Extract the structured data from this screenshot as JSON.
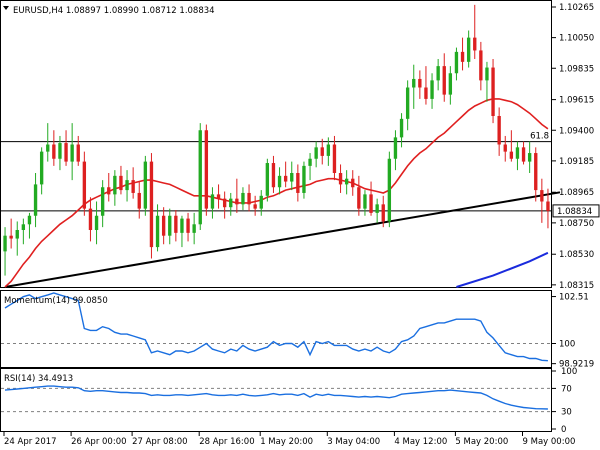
{
  "colors": {
    "bull": "#22aa22",
    "bear": "#dd2020",
    "sma": "#e02020",
    "long_ma": "#1a2bdd",
    "trendline": "#000000",
    "indicator_line": "#1a6fe0",
    "axis": "#000000",
    "dashed": "#808080",
    "price_tag_bg": "#ffffff"
  },
  "header": {
    "arrow_icon": "triangle-down-icon",
    "text": "EURUSD,H4  1.08897  1.08990  1.08712  1.08834"
  },
  "chart_data": [
    {
      "type": "candlestick",
      "symbol": "EURUSD",
      "timeframe": "H4",
      "ohlc_last": {
        "open": 1.08897,
        "high": 1.0899,
        "low": 1.08712,
        "close": 1.08834
      },
      "ylim": [
        1.083,
        1.103
      ],
      "y_ticks": [
        "1.10265",
        "1.10050",
        "1.09835",
        "1.09615",
        "1.09400",
        "1.09185",
        "1.08965",
        "1.08750",
        "1.08530",
        "1.08315"
      ],
      "x_tick_labels": [
        "24 Apr 2017",
        "26 Apr 00:00",
        "27 Apr 08:00",
        "28 Apr 16:00",
        "1 May 20:00",
        "3 May 04:00",
        "4 May 12:00",
        "5 May 20:00",
        "9 May 00:00"
      ],
      "current_price_label": "1.08834",
      "current_price": 1.08834,
      "horizontal_levels": [
        {
          "value": 1.0932,
          "label": "61.8"
        },
        {
          "value": 1.08834,
          "label": ""
        }
      ],
      "candles": [
        {
          "o": 1.0855,
          "h": 1.0872,
          "l": 1.0838,
          "c": 1.0866
        },
        {
          "o": 1.0866,
          "h": 1.0878,
          "l": 1.0857,
          "c": 1.0864
        },
        {
          "o": 1.0864,
          "h": 1.0876,
          "l": 1.0852,
          "c": 1.087
        },
        {
          "o": 1.087,
          "h": 1.0878,
          "l": 1.086,
          "c": 1.0874
        },
        {
          "o": 1.0874,
          "h": 1.0882,
          "l": 1.0864,
          "c": 1.088
        },
        {
          "o": 1.088,
          "h": 1.091,
          "l": 1.0872,
          "c": 1.0902
        },
        {
          "o": 1.0902,
          "h": 1.0928,
          "l": 1.0895,
          "c": 1.0925
        },
        {
          "o": 1.0925,
          "h": 1.0945,
          "l": 1.0918,
          "c": 1.093
        },
        {
          "o": 1.093,
          "h": 1.094,
          "l": 1.0915,
          "c": 1.092
        },
        {
          "o": 1.092,
          "h": 1.0936,
          "l": 1.0912,
          "c": 1.0931
        },
        {
          "o": 1.0931,
          "h": 1.094,
          "l": 1.0915,
          "c": 1.0918
        },
        {
          "o": 1.0918,
          "h": 1.0945,
          "l": 1.0905,
          "c": 1.093
        },
        {
          "o": 1.093,
          "h": 1.0936,
          "l": 1.0915,
          "c": 1.0918
        },
        {
          "o": 1.0918,
          "h": 1.0925,
          "l": 1.088,
          "c": 1.0885
        },
        {
          "o": 1.0885,
          "h": 1.0893,
          "l": 1.0862,
          "c": 1.087
        },
        {
          "o": 1.087,
          "h": 1.089,
          "l": 1.086,
          "c": 1.088
        },
        {
          "o": 1.088,
          "h": 1.0905,
          "l": 1.0872,
          "c": 1.09
        },
        {
          "o": 1.09,
          "h": 1.091,
          "l": 1.089,
          "c": 1.0895
        },
        {
          "o": 1.0895,
          "h": 1.0912,
          "l": 1.0887,
          "c": 1.0908
        },
        {
          "o": 1.0908,
          "h": 1.0915,
          "l": 1.0895,
          "c": 1.0898
        },
        {
          "o": 1.0898,
          "h": 1.0912,
          "l": 1.089,
          "c": 1.0905
        },
        {
          "o": 1.0905,
          "h": 1.0914,
          "l": 1.0892,
          "c": 1.0896
        },
        {
          "o": 1.0896,
          "h": 1.0904,
          "l": 1.0878,
          "c": 1.0885
        },
        {
          "o": 1.0885,
          "h": 1.0922,
          "l": 1.088,
          "c": 1.0918
        },
        {
          "o": 1.0918,
          "h": 1.0924,
          "l": 1.085,
          "c": 1.0858
        },
        {
          "o": 1.0858,
          "h": 1.0888,
          "l": 1.0855,
          "c": 1.088
        },
        {
          "o": 1.088,
          "h": 1.0886,
          "l": 1.086,
          "c": 1.0866
        },
        {
          "o": 1.0866,
          "h": 1.0885,
          "l": 1.086,
          "c": 1.088
        },
        {
          "o": 1.088,
          "h": 1.0884,
          "l": 1.0862,
          "c": 1.0868
        },
        {
          "o": 1.0868,
          "h": 1.088,
          "l": 1.0858,
          "c": 1.0878
        },
        {
          "o": 1.0878,
          "h": 1.0882,
          "l": 1.0862,
          "c": 1.0868
        },
        {
          "o": 1.0868,
          "h": 1.0882,
          "l": 1.086,
          "c": 1.0874
        },
        {
          "o": 1.0874,
          "h": 1.0945,
          "l": 1.087,
          "c": 1.094
        },
        {
          "o": 1.094,
          "h": 1.0944,
          "l": 1.088,
          "c": 1.0885
        },
        {
          "o": 1.0885,
          "h": 1.09,
          "l": 1.0878,
          "c": 1.0895
        },
        {
          "o": 1.0895,
          "h": 1.0902,
          "l": 1.0885,
          "c": 1.0892
        },
        {
          "o": 1.0892,
          "h": 1.0897,
          "l": 1.0878,
          "c": 1.0886
        },
        {
          "o": 1.0886,
          "h": 1.0896,
          "l": 1.088,
          "c": 1.0892
        },
        {
          "o": 1.0892,
          "h": 1.0906,
          "l": 1.0882,
          "c": 1.0888
        },
        {
          "o": 1.0888,
          "h": 1.09,
          "l": 1.0884,
          "c": 1.0896
        },
        {
          "o": 1.0896,
          "h": 1.0902,
          "l": 1.0883,
          "c": 1.0888
        },
        {
          "o": 1.0888,
          "h": 1.0894,
          "l": 1.088,
          "c": 1.0885
        },
        {
          "o": 1.0885,
          "h": 1.0898,
          "l": 1.088,
          "c": 1.0894
        },
        {
          "o": 1.0894,
          "h": 1.092,
          "l": 1.089,
          "c": 1.0917
        },
        {
          "o": 1.0917,
          "h": 1.0922,
          "l": 1.0896,
          "c": 1.09
        },
        {
          "o": 1.09,
          "h": 1.0914,
          "l": 1.0895,
          "c": 1.0908
        },
        {
          "o": 1.0908,
          "h": 1.0918,
          "l": 1.09,
          "c": 1.0904
        },
        {
          "o": 1.0904,
          "h": 1.0918,
          "l": 1.0898,
          "c": 1.091
        },
        {
          "o": 1.091,
          "h": 1.0916,
          "l": 1.089,
          "c": 1.0896
        },
        {
          "o": 1.0896,
          "h": 1.0918,
          "l": 1.0892,
          "c": 1.0915
        },
        {
          "o": 1.0915,
          "h": 1.0924,
          "l": 1.0905,
          "c": 1.092
        },
        {
          "o": 1.092,
          "h": 1.0932,
          "l": 1.0914,
          "c": 1.0928
        },
        {
          "o": 1.0928,
          "h": 1.0934,
          "l": 1.0916,
          "c": 1.0922
        },
        {
          "o": 1.0922,
          "h": 1.0935,
          "l": 1.0915,
          "c": 1.093
        },
        {
          "o": 1.093,
          "h": 1.0936,
          "l": 1.0905,
          "c": 1.091
        },
        {
          "o": 1.091,
          "h": 1.0916,
          "l": 1.0896,
          "c": 1.0902
        },
        {
          "o": 1.0902,
          "h": 1.0912,
          "l": 1.0895,
          "c": 1.0906
        },
        {
          "o": 1.0906,
          "h": 1.0912,
          "l": 1.0894,
          "c": 1.09
        },
        {
          "o": 1.09,
          "h": 1.0908,
          "l": 1.088,
          "c": 1.0885
        },
        {
          "o": 1.0885,
          "h": 1.0898,
          "l": 1.088,
          "c": 1.0895
        },
        {
          "o": 1.0895,
          "h": 1.0904,
          "l": 1.088,
          "c": 1.0882
        },
        {
          "o": 1.0882,
          "h": 1.0892,
          "l": 1.0875,
          "c": 1.0888
        },
        {
          "o": 1.0888,
          "h": 1.0894,
          "l": 1.0872,
          "c": 1.0876
        },
        {
          "o": 1.0876,
          "h": 1.0925,
          "l": 1.0872,
          "c": 1.092
        },
        {
          "o": 1.092,
          "h": 1.094,
          "l": 1.0912,
          "c": 1.0935
        },
        {
          "o": 1.0935,
          "h": 1.0952,
          "l": 1.0928,
          "c": 1.0948
        },
        {
          "o": 1.0948,
          "h": 1.0975,
          "l": 1.094,
          "c": 1.097
        },
        {
          "o": 1.097,
          "h": 1.0986,
          "l": 1.0955,
          "c": 1.0976
        },
        {
          "o": 1.0976,
          "h": 1.0982,
          "l": 1.0962,
          "c": 1.097
        },
        {
          "o": 1.097,
          "h": 1.0985,
          "l": 1.0958,
          "c": 1.0962
        },
        {
          "o": 1.0962,
          "h": 1.098,
          "l": 1.0955,
          "c": 1.0975
        },
        {
          "o": 1.0975,
          "h": 1.099,
          "l": 1.0968,
          "c": 1.0985
        },
        {
          "o": 1.0985,
          "h": 1.0994,
          "l": 1.096,
          "c": 1.0965
        },
        {
          "o": 1.0965,
          "h": 1.0985,
          "l": 1.0958,
          "c": 1.098
        },
        {
          "o": 1.098,
          "h": 1.0998,
          "l": 1.0975,
          "c": 1.0995
        },
        {
          "o": 1.0995,
          "h": 1.1005,
          "l": 1.0982,
          "c": 1.0988
        },
        {
          "o": 1.0988,
          "h": 1.101,
          "l": 1.0984,
          "c": 1.1005
        },
        {
          "o": 1.1005,
          "h": 1.1028,
          "l": 1.099,
          "c": 1.0996
        },
        {
          "o": 1.0996,
          "h": 1.1002,
          "l": 1.0968,
          "c": 1.0975
        },
        {
          "o": 1.0975,
          "h": 1.0988,
          "l": 1.096,
          "c": 1.0984
        },
        {
          "o": 1.0984,
          "h": 1.099,
          "l": 1.0945,
          "c": 1.095
        },
        {
          "o": 1.095,
          "h": 1.0956,
          "l": 1.0922,
          "c": 1.093
        },
        {
          "o": 1.093,
          "h": 1.0936,
          "l": 1.0918,
          "c": 1.0925
        },
        {
          "o": 1.0925,
          "h": 1.094,
          "l": 1.0918,
          "c": 1.092
        },
        {
          "o": 1.092,
          "h": 1.0932,
          "l": 1.0912,
          "c": 1.0928
        },
        {
          "o": 1.0928,
          "h": 1.0932,
          "l": 1.0916,
          "c": 1.0918
        },
        {
          "o": 1.0918,
          "h": 1.0932,
          "l": 1.091,
          "c": 1.0924
        },
        {
          "o": 1.0924,
          "h": 1.0928,
          "l": 1.089,
          "c": 1.0898
        },
        {
          "o": 1.0898,
          "h": 1.0906,
          "l": 1.0875,
          "c": 1.089
        },
        {
          "o": 1.089,
          "h": 1.0899,
          "l": 1.08712,
          "c": 1.08834
        }
      ],
      "sma": [
        1.083,
        1.0834,
        1.084,
        1.0846,
        1.0851,
        1.0857,
        1.0862,
        1.0866,
        1.087,
        1.0874,
        1.0877,
        1.088,
        1.0884,
        1.0888,
        1.0891,
        1.0893,
        1.0895,
        1.0897,
        1.0899,
        1.09,
        1.0902,
        1.0903,
        1.0904,
        1.0905,
        1.0905,
        1.0904,
        1.0903,
        1.0902,
        1.09,
        1.0898,
        1.0896,
        1.0894,
        1.0894,
        1.0894,
        1.0893,
        1.0892,
        1.0891,
        1.089,
        1.0889,
        1.0889,
        1.0889,
        1.089,
        1.0891,
        1.0893,
        1.0894,
        1.0896,
        1.0898,
        1.0899,
        1.09,
        1.0901,
        1.0902,
        1.0904,
        1.0905,
        1.0906,
        1.0906,
        1.0905,
        1.0904,
        1.0903,
        1.0901,
        1.0899,
        1.0898,
        1.0897,
        1.0896,
        1.0898,
        1.0903,
        1.0909,
        1.0915,
        1.092,
        1.0924,
        1.0927,
        1.0931,
        1.0935,
        1.0938,
        1.0942,
        1.0946,
        1.095,
        1.0954,
        1.0957,
        1.0959,
        1.0961,
        1.0962,
        1.0962,
        1.0961,
        1.096,
        1.0958,
        1.0955,
        1.0952,
        1.0948,
        1.0944,
        1.0941
      ],
      "long_ma": [
        {
          "index": 74,
          "value": 1.083
        },
        {
          "index": 80,
          "value": 1.0838
        },
        {
          "index": 86,
          "value": 1.0848
        },
        {
          "index": 89,
          "value": 1.0854
        }
      ],
      "trendline": [
        {
          "index": 0,
          "value": 1.083
        },
        {
          "index": 89,
          "value": 1.0895
        }
      ]
    },
    {
      "type": "line",
      "name_label": "Momentum(14) 99.0850",
      "ylim": [
        98.85,
        102.7
      ],
      "y_ticks": [
        "102.51",
        "100",
        "98.9219"
      ],
      "reference_level": 100,
      "values": [
        101.9,
        102.1,
        102.3,
        102.5,
        102.6,
        102.4,
        102.5,
        102.6,
        102.7,
        102.6,
        102.5,
        102.4,
        102.3,
        100.8,
        100.7,
        100.7,
        100.9,
        100.8,
        100.6,
        100.5,
        100.5,
        100.4,
        100.3,
        100.2,
        99.5,
        99.6,
        99.5,
        99.4,
        99.6,
        99.6,
        99.5,
        99.6,
        99.8,
        100.0,
        99.7,
        99.6,
        99.5,
        99.7,
        99.6,
        99.9,
        99.7,
        99.6,
        99.7,
        99.8,
        100.1,
        99.9,
        100.0,
        100.0,
        99.8,
        100.1,
        99.4,
        100.1,
        100.0,
        100.1,
        99.9,
        99.9,
        99.9,
        99.7,
        99.6,
        99.7,
        99.6,
        99.8,
        99.6,
        99.5,
        99.7,
        100.1,
        100.2,
        100.4,
        100.8,
        100.9,
        101.0,
        101.1,
        101.1,
        101.2,
        101.3,
        101.3,
        101.3,
        101.3,
        101.2,
        100.6,
        100.3,
        99.9,
        99.5,
        99.4,
        99.3,
        99.3,
        99.2,
        99.2,
        99.1,
        99.08
      ]
    },
    {
      "type": "line",
      "name_label": "RSI(14) 34.4913",
      "ylim": [
        0,
        100
      ],
      "y_ticks": [
        "100",
        "70",
        "30",
        "0"
      ],
      "reference_levels": [
        70,
        30
      ],
      "values": [
        67,
        68,
        69,
        70,
        71,
        72,
        73,
        74,
        74,
        73,
        72,
        72,
        71,
        66,
        65,
        66,
        66,
        65,
        64,
        63,
        63,
        62,
        62,
        61,
        58,
        59,
        58,
        58,
        59,
        59,
        58,
        59,
        60,
        61,
        59,
        58,
        58,
        59,
        58,
        60,
        58,
        57,
        58,
        59,
        61,
        59,
        60,
        60,
        58,
        61,
        55,
        60,
        58,
        60,
        58,
        58,
        57,
        56,
        55,
        56,
        55,
        56,
        55,
        54,
        56,
        60,
        61,
        62,
        63,
        64,
        65,
        66,
        66,
        67,
        66,
        65,
        64,
        63,
        62,
        58,
        52,
        48,
        44,
        41,
        39,
        37,
        36,
        35,
        34.8,
        34.49
      ]
    }
  ]
}
